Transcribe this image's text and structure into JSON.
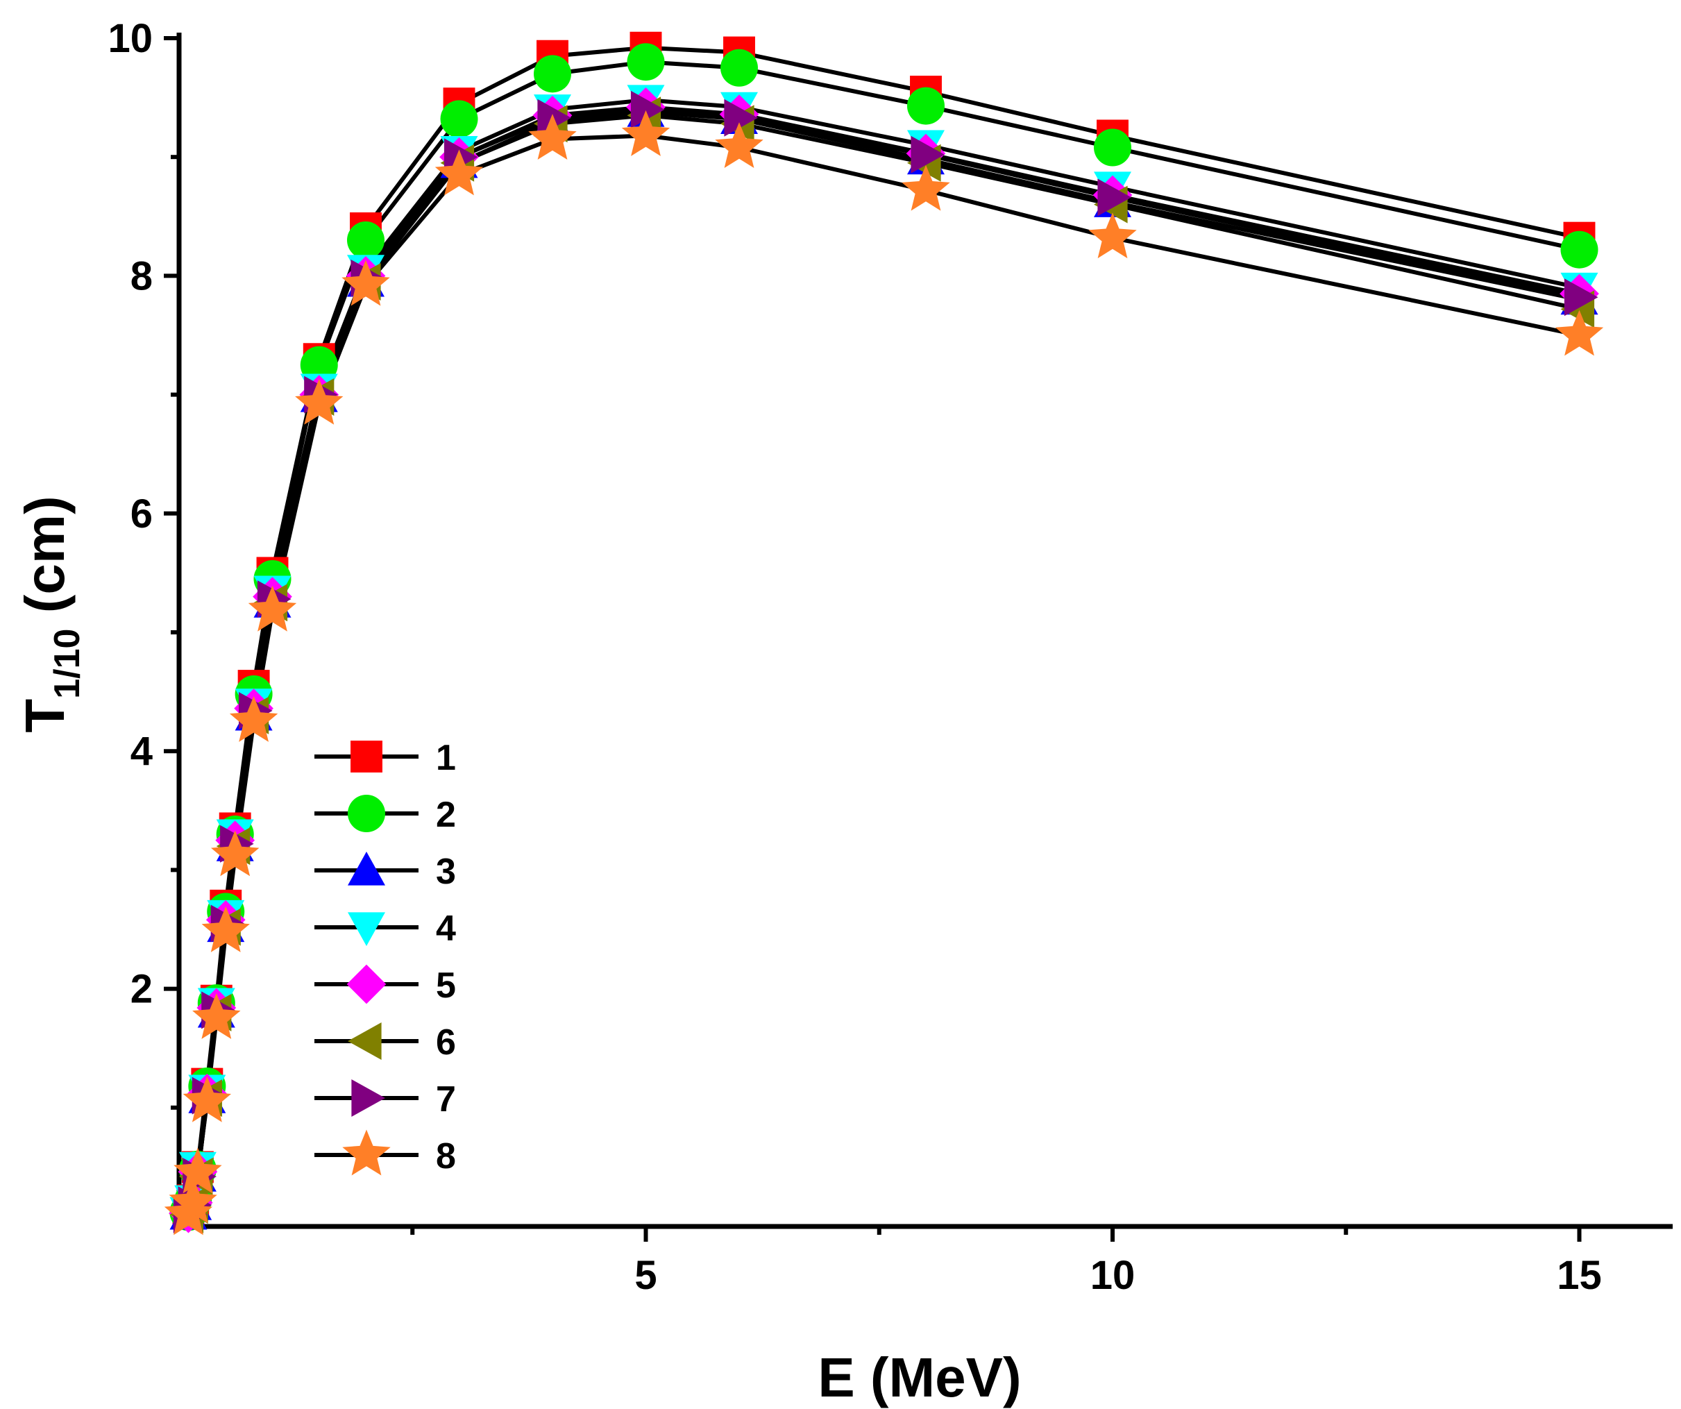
{
  "chart_data": {
    "type": "line",
    "xlabel": "E (MeV)",
    "ylabel_main": "T",
    "ylabel_sub": "1/10",
    "ylabel_unit": " (cm)",
    "xlim": [
      0,
      16
    ],
    "ylim": [
      0,
      10
    ],
    "xticks": [
      5,
      10,
      15
    ],
    "xticks_minor": [
      2.5,
      7.5,
      12.5
    ],
    "yticks": [
      2,
      4,
      6,
      8,
      10
    ],
    "yticks_minor": [
      1,
      3,
      5,
      7,
      9
    ],
    "legend_position": "lower-left",
    "line_color": "#000000",
    "x": [
      0.1,
      0.15,
      0.2,
      0.3,
      0.4,
      0.5,
      0.6,
      0.8,
      1.0,
      1.5,
      2.0,
      3.0,
      4.0,
      5.0,
      6.0,
      8.0,
      10.0,
      15.0
    ],
    "series": [
      {
        "name": "1",
        "marker": "square",
        "color": "#ff0000",
        "values": [
          0.12,
          0.22,
          0.5,
          1.2,
          1.9,
          2.7,
          3.35,
          4.55,
          5.5,
          7.3,
          8.4,
          9.45,
          9.85,
          9.92,
          9.88,
          9.55,
          9.18,
          8.32
        ]
      },
      {
        "name": "2",
        "marker": "circle",
        "color": "#00ee00",
        "values": [
          0.12,
          0.22,
          0.48,
          1.18,
          1.88,
          2.65,
          3.3,
          4.48,
          5.45,
          7.25,
          8.3,
          9.32,
          9.7,
          9.8,
          9.75,
          9.43,
          9.08,
          8.22
        ]
      },
      {
        "name": "3",
        "marker": "triangle-up",
        "color": "#0000ff",
        "values": [
          0.1,
          0.18,
          0.42,
          1.08,
          1.8,
          2.52,
          3.2,
          4.3,
          5.25,
          6.98,
          7.95,
          8.95,
          9.3,
          9.38,
          9.32,
          8.98,
          8.62,
          7.8
        ]
      },
      {
        "name": "4",
        "marker": "triangle-down",
        "color": "#00ffff",
        "values": [
          0.12,
          0.22,
          0.5,
          1.15,
          1.88,
          2.62,
          3.3,
          4.4,
          5.35,
          7.05,
          8.05,
          9.05,
          9.4,
          9.48,
          9.42,
          9.1,
          8.75,
          7.9
        ]
      },
      {
        "name": "5",
        "marker": "diamond",
        "color": "#ff00ff",
        "values": [
          0.11,
          0.2,
          0.46,
          1.12,
          1.84,
          2.58,
          3.25,
          4.36,
          5.3,
          7.0,
          8.0,
          9.0,
          9.35,
          9.42,
          9.36,
          9.03,
          8.68,
          7.85
        ]
      },
      {
        "name": "6",
        "marker": "triangle-left",
        "color": "#808000",
        "values": [
          0.1,
          0.18,
          0.42,
          1.08,
          1.8,
          2.52,
          3.2,
          4.3,
          5.25,
          6.98,
          7.95,
          8.95,
          9.28,
          9.35,
          9.28,
          8.95,
          8.6,
          7.72
        ]
      },
      {
        "name": "7",
        "marker": "triangle-right",
        "color": "#800080",
        "values": [
          0.1,
          0.18,
          0.42,
          1.1,
          1.82,
          2.55,
          3.22,
          4.34,
          5.28,
          7.0,
          7.98,
          9.0,
          9.33,
          9.4,
          9.33,
          9.02,
          8.66,
          7.82
        ]
      },
      {
        "name": "8",
        "marker": "star",
        "color": "#ff7f27",
        "values": [
          0.1,
          0.2,
          0.45,
          1.05,
          1.75,
          2.48,
          3.12,
          4.25,
          5.18,
          6.92,
          7.92,
          8.85,
          9.15,
          9.18,
          9.08,
          8.72,
          8.32,
          7.5
        ]
      }
    ]
  }
}
